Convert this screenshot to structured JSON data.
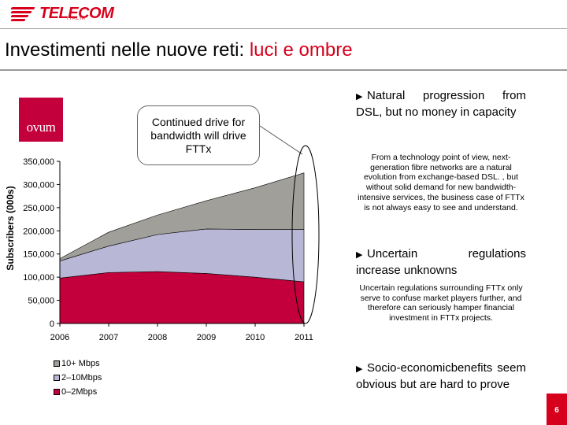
{
  "brand": {
    "name": "TELECOM",
    "sub": "ITALIA",
    "color": "#d6001c"
  },
  "title": {
    "main": "Investimenti nelle nuove reti:",
    "accent": "luci e ombre"
  },
  "source_logo": "ovum",
  "callout": "Continued drive for bandwidth will drive FTTx",
  "chart_data": {
    "type": "area",
    "stacked": true,
    "x": [
      "2006",
      "2007",
      "2008",
      "2009",
      "2010",
      "2011"
    ],
    "ylabel": "Subscribers (000s)",
    "ylim": [
      0,
      350000
    ],
    "yticks": [
      "0",
      "50,000",
      "100,000",
      "150,000",
      "200,000",
      "250,000",
      "300,000",
      "350,000"
    ],
    "series": [
      {
        "name": "0–2Mbps",
        "color": "#c4003c",
        "values": [
          98000,
          110000,
          112000,
          108000,
          100000,
          90000
        ]
      },
      {
        "name": "2–10Mbps",
        "color": "#b8b8d6",
        "values": [
          37000,
          57000,
          80000,
          96000,
          103000,
          113000
        ]
      },
      {
        "name": "10+ Mbps",
        "color": "#a09f9a",
        "values": [
          5000,
          30000,
          42000,
          61000,
          90000,
          122000
        ]
      }
    ],
    "legend": [
      "10+ Mbps",
      "2–10Mbps",
      "0–2Mbps"
    ],
    "legend_position": "bottom-left"
  },
  "bullets": [
    {
      "heading": "Natural progression from DSL, but no money in capacity",
      "detail": "From a technology point of view, next-generation fibre networks are a natural evolution from exchange-based DSL. , but without solid demand for new bandwidth-intensive services, the business case of FTTx is not always easy to see and understand."
    },
    {
      "heading": "Uncertain regulations increase unknowns",
      "detail": "Uncertain regulations surrounding FTTx only serve to confuse market players further, and therefore can seriously hamper financial investment in FTTx projects."
    },
    {
      "heading": "Socio-economicbenefits seem obvious but are hard to prove",
      "detail": ""
    }
  ],
  "page_number": "6"
}
